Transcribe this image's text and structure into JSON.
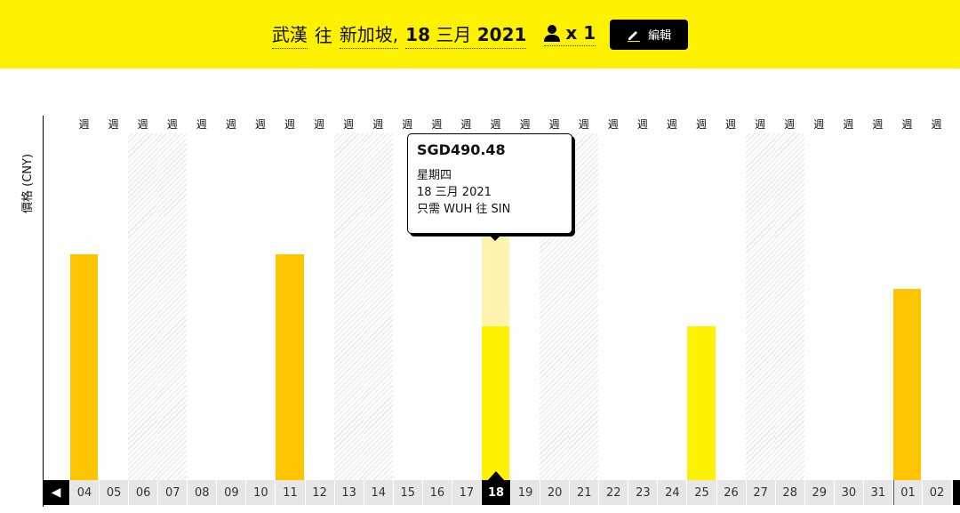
{
  "header": {
    "origin": "武漢",
    "to": "往",
    "destination": "新加坡,",
    "date_day": "18",
    "date_month": "三月",
    "date_year": "2021",
    "passengers": "x 1",
    "edit_label": "編輯"
  },
  "colors": {
    "brand_yellow": "#fff200",
    "bar_orange": "#fcc500",
    "bar_yellow": "#fff200",
    "selected_highlight": "#fff3b0"
  },
  "chart_data": {
    "type": "bar",
    "ylabel": "價格 (CNY)",
    "categories": [
      "04",
      "05",
      "06",
      "07",
      "08",
      "09",
      "10",
      "11",
      "12",
      "13",
      "14",
      "15",
      "16",
      "17",
      "18",
      "19",
      "20",
      "21",
      "22",
      "23",
      "24",
      "25",
      "26",
      "27",
      "28",
      "29",
      "30",
      "31",
      "01",
      "02"
    ],
    "week_label": "週",
    "weekend_days": [
      "06",
      "07",
      "13",
      "14",
      "20",
      "21",
      "27",
      "28"
    ],
    "values": [
      720,
      null,
      null,
      null,
      null,
      null,
      null,
      720,
      null,
      null,
      null,
      null,
      null,
      null,
      490.48,
      null,
      null,
      null,
      null,
      null,
      null,
      490.48,
      null,
      null,
      null,
      null,
      null,
      null,
      610,
      null
    ],
    "bar_types": {
      "04": "orange",
      "11": "orange",
      "18": "yellow",
      "25": "yellow",
      "01": "orange"
    },
    "selected": "18"
  },
  "tooltip": {
    "price": "SGD490.48",
    "weekday": "星期四",
    "date": "18 三月 2021",
    "route": "只需 WUH 往 SIN"
  }
}
